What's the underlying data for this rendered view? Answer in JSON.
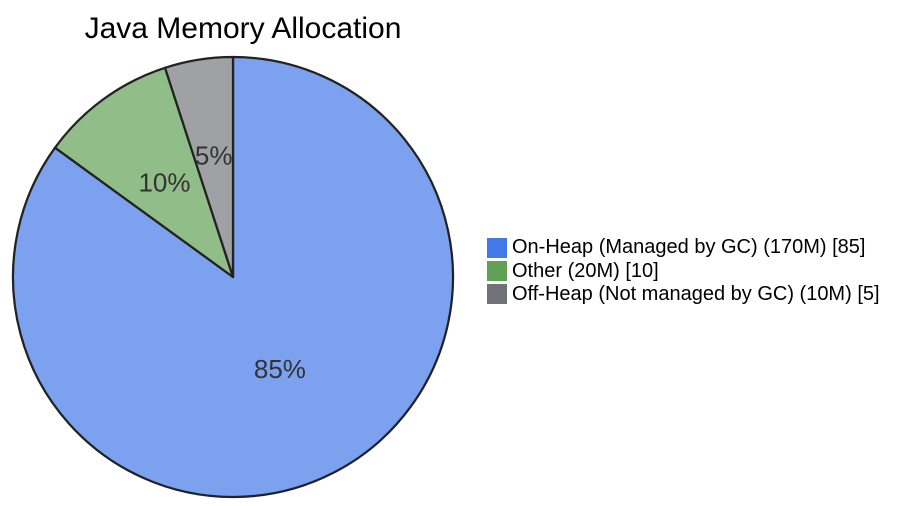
{
  "page": {
    "background": "#ffffff"
  },
  "chart_data": {
    "type": "pie",
    "title": "Java Memory Allocation",
    "legend_position": "right",
    "start_angle_deg": 0,
    "direction": "clockwise",
    "stroke_color": "#222222",
    "stroke_width": 2.25,
    "label_color": "#333333",
    "label_font_size": 26,
    "slices": [
      {
        "label": "On-Heap (Managed by GC) (170M) [85]",
        "value": 85,
        "pct_label": "85%",
        "legend_color": "#4279e8",
        "fill_color": "#7ba1ef",
        "label_radius_frac": 0.47
      },
      {
        "label": "Other (20M) [10]",
        "value": 10,
        "pct_label": "10%",
        "legend_color": "#61a156",
        "fill_color": "#90bd88",
        "label_radius_frac": 0.53
      },
      {
        "label": "Off-Heap (Not managed by GC) (10M) [5]",
        "value": 5,
        "pct_label": "5%",
        "legend_color": "#6f7378",
        "fill_color": "#a0a1a4",
        "label_radius_frac": 0.56
      }
    ]
  }
}
